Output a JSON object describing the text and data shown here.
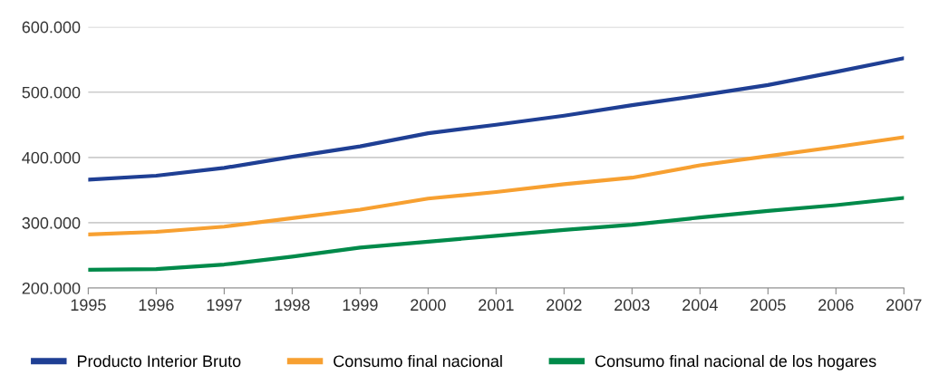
{
  "chart_data": {
    "type": "line",
    "x": [
      1995,
      1996,
      1997,
      1998,
      1999,
      2000,
      2001,
      2002,
      2003,
      2004,
      2005,
      2006,
      2007
    ],
    "series": [
      {
        "name": "Producto Interior Bruto",
        "color": "#1f3f94",
        "values": [
          366000,
          372000,
          384000,
          401000,
          417000,
          437000,
          450000,
          464000,
          480000,
          495000,
          511000,
          531000,
          552000
        ]
      },
      {
        "name": "Consumo final nacional",
        "color": "#f7a031",
        "values": [
          282000,
          286000,
          294000,
          307000,
          320000,
          337000,
          347000,
          359000,
          369000,
          388000,
          402000,
          416000,
          431000
        ]
      },
      {
        "name": "Consumo final nacional de los hogares",
        "color": "#008a4a",
        "values": [
          228000,
          229000,
          236000,
          248000,
          262000,
          271000,
          280000,
          289000,
          297000,
          308000,
          318000,
          327000,
          338000
        ]
      }
    ],
    "xlim": [
      1995,
      2007
    ],
    "xticks": [
      1995,
      1996,
      1997,
      1998,
      1999,
      2000,
      2001,
      2002,
      2003,
      2004,
      2005,
      2006,
      2007
    ],
    "ylim": [
      200000,
      600000
    ],
    "yticks": [
      {
        "value": 200000,
        "label": "200.000"
      },
      {
        "value": 300000,
        "label": "300.000"
      },
      {
        "value": 400000,
        "label": "400.000"
      },
      {
        "value": 500000,
        "label": "500.000"
      },
      {
        "value": 600000,
        "label": "600.000"
      }
    ],
    "grid": "y",
    "legend": "bottom",
    "marker": "none",
    "line_style": "solid"
  }
}
